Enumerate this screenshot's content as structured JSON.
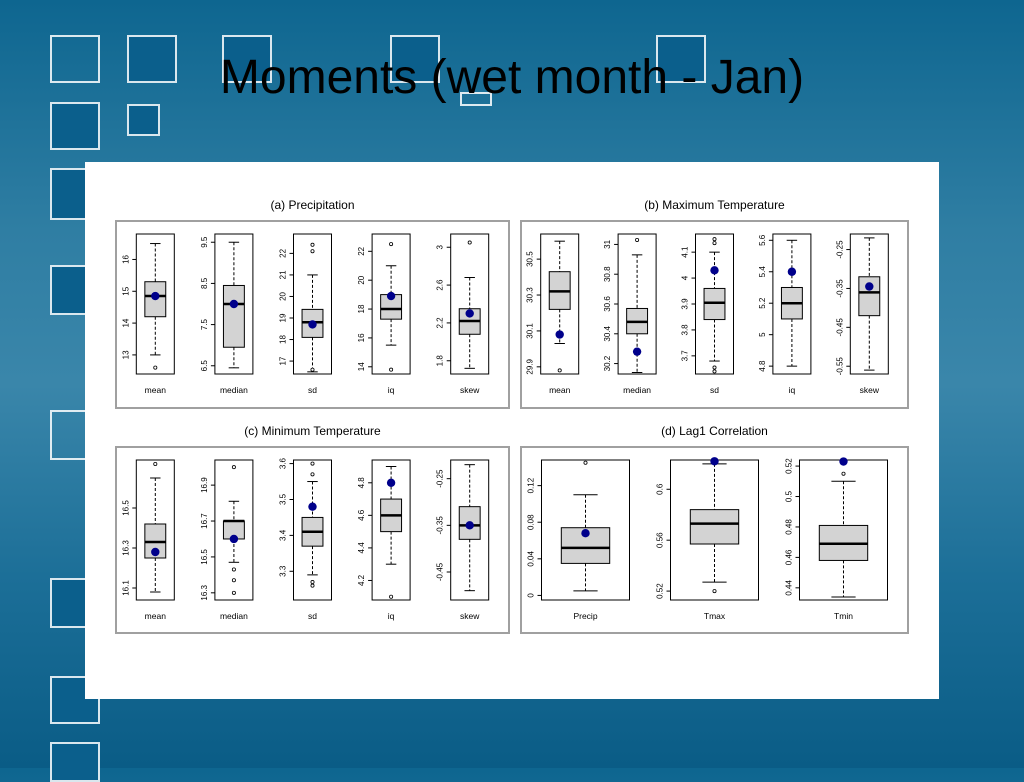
{
  "slide": {
    "title": "Moments (wet month - Jan)"
  },
  "chart_data": [
    {
      "type": "boxplot",
      "title": "(a) Precipitation",
      "grid": false,
      "legend": "none",
      "observed_marker_color": "#00008b",
      "box_fill_color": "#d3d3d3",
      "subplots": [
        {
          "label": "mean",
          "ticks": [
            13,
            14,
            15,
            16
          ],
          "ylim": [
            12.4,
            16.8
          ],
          "q1": 14.2,
          "median": 14.85,
          "q3": 15.3,
          "whisker_low": 13.0,
          "whisker_high": 16.5,
          "outliers": [
            12.6
          ],
          "observed": 14.85
        },
        {
          "label": "median",
          "ticks": [
            6.5,
            7.5,
            8.5,
            9.5
          ],
          "ylim": [
            6.3,
            9.7
          ],
          "q1": 6.95,
          "median": 8.0,
          "q3": 8.45,
          "whisker_low": 6.45,
          "whisker_high": 9.5,
          "outliers": [],
          "observed": 8.0
        },
        {
          "label": "sd",
          "ticks": [
            17,
            18,
            19,
            20,
            21,
            22
          ],
          "ylim": [
            16.4,
            22.9
          ],
          "q1": 18.1,
          "median": 18.8,
          "q3": 19.4,
          "whisker_low": 16.5,
          "whisker_high": 21.0,
          "outliers": [
            16.6,
            22.1,
            22.4
          ],
          "observed": 18.7
        },
        {
          "label": "iq",
          "ticks": [
            14,
            16,
            18,
            20,
            22
          ],
          "ylim": [
            13.5,
            23.2
          ],
          "q1": 17.3,
          "median": 18.0,
          "q3": 19.0,
          "whisker_low": 15.5,
          "whisker_high": 21.0,
          "outliers": [
            13.8,
            22.5
          ],
          "observed": 18.9
        },
        {
          "label": "skew",
          "ticks": [
            1.8,
            2.2,
            2.6,
            3.0
          ],
          "ylim": [
            1.66,
            3.14
          ],
          "q1": 2.08,
          "median": 2.22,
          "q3": 2.35,
          "whisker_low": 1.72,
          "whisker_high": 2.68,
          "outliers": [
            3.05
          ],
          "observed": 2.3
        }
      ]
    },
    {
      "type": "boxplot",
      "title": "(b) Maximum Temperature",
      "grid": false,
      "legend": "none",
      "subplots": [
        {
          "label": "mean",
          "ticks": [
            29.9,
            30.1,
            30.3,
            30.5
          ],
          "ylim": [
            29.86,
            30.64
          ],
          "q1": 30.22,
          "median": 30.32,
          "q3": 30.43,
          "whisker_low": 30.03,
          "whisker_high": 30.6,
          "outliers": [
            29.88
          ],
          "observed": 30.08
        },
        {
          "label": "median",
          "ticks": [
            30.2,
            30.4,
            30.6,
            30.8,
            31.0
          ],
          "ylim": [
            30.13,
            31.07
          ],
          "q1": 30.4,
          "median": 30.48,
          "q3": 30.57,
          "whisker_low": 30.14,
          "whisker_high": 30.93,
          "outliers": [
            31.03
          ],
          "observed": 30.28
        },
        {
          "label": "sd",
          "ticks": [
            3.7,
            3.8,
            3.9,
            4.0,
            4.1
          ],
          "ylim": [
            3.63,
            4.17
          ],
          "q1": 3.84,
          "median": 3.905,
          "q3": 3.96,
          "whisker_low": 3.68,
          "whisker_high": 4.1,
          "outliers": [
            3.64,
            3.655,
            4.135,
            4.15
          ],
          "observed": 4.03
        },
        {
          "label": "iq",
          "ticks": [
            4.8,
            5.0,
            5.2,
            5.4,
            5.6
          ],
          "ylim": [
            4.75,
            5.64
          ],
          "q1": 5.1,
          "median": 5.2,
          "q3": 5.3,
          "whisker_low": 4.8,
          "whisker_high": 5.6,
          "outliers": [],
          "observed": 5.4
        },
        {
          "label": "skew",
          "ticks": [
            -0.55,
            -0.45,
            -0.35,
            -0.25
          ],
          "ylim": [
            -0.57,
            -0.21
          ],
          "q1": -0.42,
          "median": -0.36,
          "q3": -0.32,
          "whisker_low": -0.56,
          "whisker_high": -0.22,
          "outliers": [],
          "observed": -0.345
        }
      ]
    },
    {
      "type": "boxplot",
      "title": "(c) Minimum Temperature",
      "grid": false,
      "legend": "none",
      "subplots": [
        {
          "label": "mean",
          "ticks": [
            16.1,
            16.3,
            16.5
          ],
          "ylim": [
            16.04,
            16.74
          ],
          "q1": 16.25,
          "median": 16.33,
          "q3": 16.42,
          "whisker_low": 16.08,
          "whisker_high": 16.65,
          "outliers": [
            16.72
          ],
          "observed": 16.28
        },
        {
          "label": "median",
          "ticks": [
            16.3,
            16.5,
            16.7,
            16.9
          ],
          "ylim": [
            16.26,
            17.04
          ],
          "q1": 16.6,
          "median": 16.7,
          "q3": 16.7,
          "whisker_low": 16.47,
          "whisker_high": 16.81,
          "outliers": [
            16.3,
            16.37,
            16.43,
            17.0
          ],
          "observed": 16.6
        },
        {
          "label": "sd",
          "ticks": [
            3.3,
            3.4,
            3.5,
            3.6
          ],
          "ylim": [
            3.22,
            3.61
          ],
          "q1": 3.37,
          "median": 3.41,
          "q3": 3.45,
          "whisker_low": 3.29,
          "whisker_high": 3.55,
          "outliers": [
            3.26,
            3.27,
            3.57,
            3.6
          ],
          "observed": 3.48
        },
        {
          "label": "iq",
          "ticks": [
            4.2,
            4.4,
            4.6,
            4.8
          ],
          "ylim": [
            4.08,
            4.94
          ],
          "q1": 4.5,
          "median": 4.6,
          "q3": 4.7,
          "whisker_low": 4.3,
          "whisker_high": 4.9,
          "outliers": [
            4.1
          ],
          "observed": 4.8
        },
        {
          "label": "skew",
          "ticks": [
            -0.45,
            -0.35,
            -0.25
          ],
          "ylim": [
            -0.51,
            -0.21
          ],
          "q1": -0.38,
          "median": -0.35,
          "q3": -0.31,
          "whisker_low": -0.49,
          "whisker_high": -0.22,
          "outliers": [],
          "observed": -0.35
        }
      ]
    },
    {
      "type": "boxplot",
      "title": "(d) Lag1 Correlation",
      "grid": false,
      "legend": "none",
      "subplots": [
        {
          "label": "Precip",
          "ticks": [
            0.0,
            0.04,
            0.08,
            0.12
          ],
          "ylim": [
            -0.005,
            0.148
          ],
          "q1": 0.035,
          "median": 0.052,
          "q3": 0.074,
          "whisker_low": 0.005,
          "whisker_high": 0.11,
          "outliers": [
            0.145
          ],
          "observed": 0.068
        },
        {
          "label": "Tmax",
          "ticks": [
            0.52,
            0.56,
            0.6
          ],
          "ylim": [
            0.513,
            0.623
          ],
          "q1": 0.557,
          "median": 0.573,
          "q3": 0.584,
          "whisker_low": 0.527,
          "whisker_high": 0.62,
          "outliers": [
            0.52
          ],
          "observed": 0.622
        },
        {
          "label": "Tmin",
          "ticks": [
            0.44,
            0.46,
            0.48,
            0.5,
            0.52
          ],
          "ylim": [
            0.432,
            0.524
          ],
          "q1": 0.458,
          "median": 0.469,
          "q3": 0.481,
          "whisker_low": 0.434,
          "whisker_high": 0.51,
          "outliers": [
            0.515
          ],
          "observed": 0.523
        }
      ]
    }
  ]
}
